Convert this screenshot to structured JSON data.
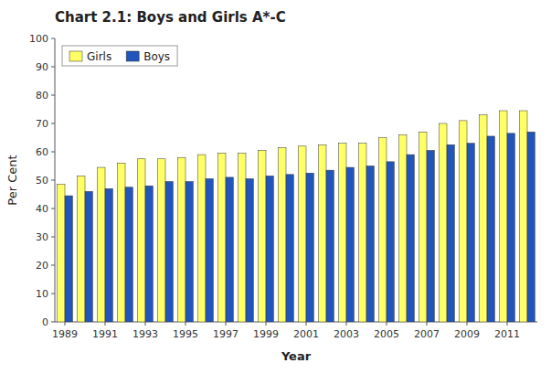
{
  "chart_data": {
    "type": "bar",
    "title": "Chart 2.1: Boys and Girls A*-C",
    "xlabel": "Year",
    "ylabel": "Per Cent",
    "categories": [
      "1989",
      null,
      "1991",
      null,
      "1993",
      null,
      "1995",
      null,
      "1997",
      null,
      "1999",
      null,
      "2001",
      null,
      "2003",
      null,
      "2005",
      null,
      "2007",
      null,
      "2009",
      null,
      "2011",
      null
    ],
    "series": [
      {
        "name": "Girls",
        "color": "#FFFF66",
        "values": [
          48.5,
          51.5,
          54.5,
          56.0,
          57.5,
          57.5,
          58.0,
          59.0,
          59.5,
          59.5,
          60.5,
          61.5,
          62.0,
          62.5,
          63.0,
          63.0,
          65.0,
          66.0,
          67.0,
          70.0,
          71.0,
          73.0,
          74.5,
          74.5
        ]
      },
      {
        "name": "Boys",
        "color": "#2255BB",
        "values": [
          44.5,
          46.0,
          47.0,
          47.5,
          48.0,
          49.5,
          49.5,
          50.5,
          51.0,
          50.5,
          51.5,
          52.0,
          52.5,
          53.5,
          54.5,
          55.0,
          56.5,
          59.0,
          60.5,
          62.5,
          63.0,
          65.5,
          66.5,
          67.0
        ]
      }
    ],
    "ylim": [
      0,
      100
    ],
    "yticks": [
      0,
      10,
      20,
      30,
      40,
      50,
      60,
      70,
      80,
      90,
      100
    ],
    "grid": false,
    "legend": "upper left"
  }
}
